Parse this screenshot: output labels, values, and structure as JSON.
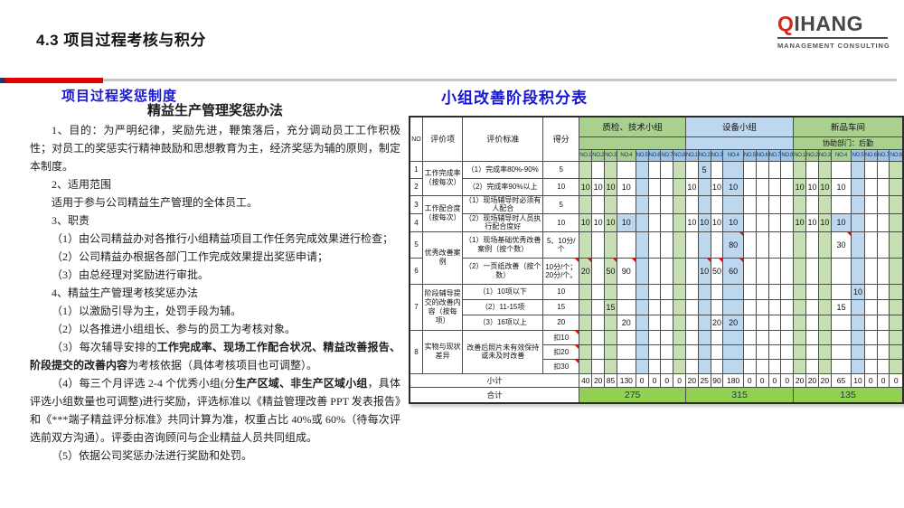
{
  "page": {
    "title": "4.3 项目过程考核与积分"
  },
  "logo": {
    "text_accent": "Q",
    "text_rest": "IHANG",
    "subtitle": "MANAGEMENT  CONSULTING"
  },
  "colors": {
    "accent_blue": "#1717D1",
    "rule_red": "#E00000",
    "rule_gray": "#C6C6C6",
    "group_green": "#A9D08E",
    "stripe_green": "#C6E0B4",
    "fill_blue": "#BDD7EE",
    "total_green": "#92D050",
    "comment_mark_red": "#FF0000",
    "logo_red": "#D42A1E"
  },
  "left": {
    "header": "项目过程奖惩制度",
    "doc_title": "精益生产管理奖惩办法",
    "paragraphs": [
      [
        {
          "t": "1、目的：为严明纪律，奖励先进，鞭策落后，充分调动员工工作积极性；对员工的奖惩实行精神鼓励和思想教育为主，经济奖惩为辅的原则，制定本制度。"
        }
      ],
      [
        {
          "t": "2、适用范围"
        }
      ],
      [
        {
          "t": "适用于参与公司精益生产管理的全体员工。"
        }
      ],
      [
        {
          "t": "3、职责"
        }
      ],
      [
        {
          "t": "（1）由公司精益办对各推行小组精益项目工作任务完成效果进行检查；"
        }
      ],
      [
        {
          "t": "（2）公司精益办根据各部门工作完成效果提出奖惩申请；"
        }
      ],
      [
        {
          "t": "（3）由总经理对奖励进行审批。"
        }
      ],
      [
        {
          "t": "4、精益生产管理考核奖惩办法"
        }
      ],
      [
        {
          "t": "（1）以激励引导为主，处罚手段为辅。"
        }
      ],
      [
        {
          "t": "（2）以各推进小组组长、参与的员工为考核对象。"
        }
      ],
      [
        {
          "t": "（3）每次辅导安排的"
        },
        {
          "t": "工作完成率、现场工作配合状况、精益改善报告、阶段提交的改善内容",
          "b": true
        },
        {
          "t": "为考核依据（具体考核项目也可调整）。"
        }
      ],
      [
        {
          "t": "（4）每三个月评选 2-4 个优秀小组(分"
        },
        {
          "t": "生产区域、非生产区域小组",
          "b": true
        },
        {
          "t": "，具体评选小组数量也可调整)进行奖励，评选标准以《精益管理改善 PPT 发表报告》和《***端子精益评分标准》共同计算为准，权重占比 40%或 60%（待每次评选前双方沟通）。评委由咨询顾问与企业精益人员共同组成。"
        }
      ],
      [
        {
          "t": "（5）依据公司奖惩办法进行奖励和处罚。"
        }
      ]
    ]
  },
  "right": {
    "header": "小组改善阶段积分表",
    "table": {
      "corner_headers": [
        "NO",
        "评价项",
        "评价标准",
        "得分"
      ],
      "sub_cols": [
        "NO.1",
        "NO.2",
        "NO.3",
        "NO.4",
        "NO.5",
        "NO.6",
        "NO.7",
        "NO.8"
      ],
      "groups": [
        {
          "name": "质检、技术小组",
          "color": "green",
          "assist": "",
          "stripes": [
            "g",
            "",
            "g",
            "",
            "b",
            "",
            "",
            "g"
          ],
          "subheader": [
            "g",
            "g",
            "g",
            "g",
            "b",
            "b",
            "b",
            "b"
          ]
        },
        {
          "name": "设备小组",
          "color": "blue",
          "assist": "",
          "stripes": [
            "",
            "b",
            "",
            "b",
            "",
            "",
            "",
            ""
          ],
          "subheader": [
            "b",
            "b",
            "b",
            "b",
            "b",
            "b",
            "b",
            "b"
          ]
        },
        {
          "name": "新品车间",
          "color": "green",
          "assist": "协助部门：后勤",
          "stripes": [
            "g",
            "",
            "g",
            "",
            "b",
            "",
            "",
            "g"
          ],
          "subheader": [
            "g",
            "g",
            "g",
            "g",
            "b",
            "b",
            "b",
            "b"
          ]
        }
      ],
      "rows": [
        {
          "no": "1",
          "item": "工作完成率（按每次）",
          "item_span": 2,
          "std": "（1）完成率80%-90%",
          "score": "5",
          "values": [
            [
              "",
              "",
              "",
              "",
              "",
              "",
              "",
              ""
            ],
            [
              "",
              "5",
              "",
              "",
              "",
              "",
              "",
              ""
            ],
            [
              "",
              "",
              "",
              "",
              "",
              "",
              "",
              ""
            ]
          ]
        },
        {
          "no": "2",
          "std": "（2）完成率90%以上",
          "score": "10",
          "values": [
            [
              "10",
              "10",
              "10",
              "10",
              "",
              "",
              "",
              ""
            ],
            [
              "10",
              "",
              "10",
              "10",
              "",
              "",
              "",
              ""
            ],
            [
              "10",
              "10",
              "10",
              "10",
              "",
              "",
              "",
              ""
            ]
          ]
        },
        {
          "no": "3",
          "item": "工作配合度（按每次）",
          "item_span": 2,
          "std": "（1）现场辅导时必须有人配合",
          "score": "5",
          "values": [
            [
              "",
              "",
              "",
              "",
              "",
              "",
              "",
              ""
            ],
            [
              "",
              "",
              "",
              "",
              "",
              "",
              "",
              ""
            ],
            [
              "",
              "",
              "",
              "",
              "",
              "",
              "",
              ""
            ]
          ]
        },
        {
          "no": "4",
          "std": "（2）现场辅导时人员执行配合度好",
          "score": "10",
          "values": [
            [
              "10",
              "10",
              "10",
              "10",
              "",
              "",
              "",
              ""
            ],
            [
              "10",
              "10",
              "10",
              "10",
              "",
              "",
              "",
              ""
            ],
            [
              "10",
              "10",
              "10",
              "10",
              "",
              "",
              "",
              ""
            ]
          ],
          "hl": [
            [
              0,
              3
            ],
            [
              1,
              3
            ],
            [
              2,
              3
            ]
          ]
        },
        {
          "no": "5",
          "item": "优秀改善案例",
          "item_span": 2,
          "std": "（1）现场基础优秀改善案例（按个数）",
          "score": "5、10分/个",
          "values": [
            [
              "",
              "",
              "",
              "",
              "",
              "",
              "",
              ""
            ],
            [
              "",
              "",
              "",
              "80",
              "",
              "",
              "",
              ""
            ],
            [
              "",
              "",
              "",
              "30",
              "",
              "",
              "",
              ""
            ]
          ],
          "marks": [
            [
              1,
              3
            ],
            [
              2,
              3
            ]
          ]
        },
        {
          "no": "6",
          "std": "（2）一页纸改善（按个数）",
          "score": "10分/个；20分/个。",
          "score_mark": true,
          "values": [
            [
              "20",
              "",
              "50",
              "90",
              "",
              "",
              "",
              ""
            ],
            [
              "",
              "10",
              "50",
              "60",
              "",
              "",
              "",
              ""
            ],
            [
              "",
              "",
              "",
              "",
              "",
              "",
              "",
              ""
            ]
          ],
          "marks": [
            [
              0,
              0
            ],
            [
              0,
              2
            ],
            [
              0,
              3
            ],
            [
              1,
              1
            ],
            [
              1,
              2
            ],
            [
              1,
              3
            ]
          ]
        },
        {
          "no": "7",
          "no_span": 3,
          "item": "阶段辅导提交的改善内容（按每项）",
          "item_span": 3,
          "std": "（1）10项以下",
          "score": "10",
          "values": [
            [
              "",
              "",
              "",
              "",
              "",
              "",
              "",
              ""
            ],
            [
              "",
              "",
              "",
              "",
              "",
              "",
              "",
              ""
            ],
            [
              "",
              "",
              "",
              "",
              "10",
              "",
              "",
              ""
            ]
          ]
        },
        {
          "std": "（2）11-15项",
          "score": "15",
          "values": [
            [
              "",
              "",
              "15",
              "",
              "",
              "",
              "",
              ""
            ],
            [
              "",
              "",
              "",
              "",
              "",
              "",
              "",
              ""
            ],
            [
              "",
              "",
              "",
              "15",
              "",
              "",
              "",
              ""
            ]
          ]
        },
        {
          "std": "（3）16项以上",
          "score": "20",
          "values": [
            [
              "",
              "",
              "",
              "20",
              "",
              "",
              "",
              ""
            ],
            [
              "",
              "",
              "20",
              "20",
              "",
              "",
              "",
              ""
            ],
            [
              "",
              "",
              "",
              "",
              "",
              "",
              "",
              ""
            ]
          ]
        },
        {
          "no": "8",
          "no_span": 3,
          "item": "实物与现状差异",
          "item_span": 3,
          "std": "改善后照片未有效保持或未及时改善",
          "std_span": 3,
          "score": "扣10",
          "score_mark": true,
          "values": [
            [
              "",
              "",
              "",
              "",
              "",
              "",
              "",
              ""
            ],
            [
              "",
              "",
              "",
              "",
              "",
              "",
              "",
              ""
            ],
            [
              "",
              "",
              "",
              "",
              "",
              "",
              "",
              ""
            ]
          ]
        },
        {
          "score": "扣20",
          "score_mark": true
        },
        {
          "score": "扣30",
          "score_mark": true
        }
      ],
      "subtotal_label": "小计",
      "subtotals": [
        [
          "40",
          "20",
          "85",
          "130",
          "0",
          "0",
          "0",
          "0"
        ],
        [
          "20",
          "25",
          "90",
          "180",
          "0",
          "0",
          "0",
          "0"
        ],
        [
          "20",
          "20",
          "20",
          "65",
          "10",
          "0",
          "0",
          "0"
        ]
      ],
      "total_label": "合计",
      "totals": [
        "275",
        "315",
        "135"
      ]
    }
  }
}
